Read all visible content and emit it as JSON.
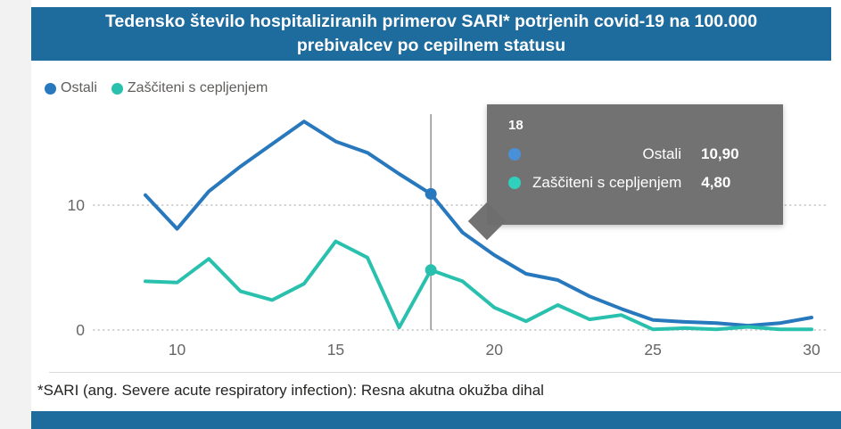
{
  "header": {
    "title": "Tedensko število hospitaliziranih primerov SARI* potrjenih covid-19 na 100.000 prebivalcev po cepilnem statusu"
  },
  "legend": {
    "items": [
      {
        "label": "Ostali",
        "color": "#2878BD"
      },
      {
        "label": "Zaščiteni s cepljenjem",
        "color": "#29C1AE"
      }
    ]
  },
  "tooltip": {
    "week": "18",
    "rows": [
      {
        "label": "Ostali",
        "value": "10,90",
        "color": "#4A90D9"
      },
      {
        "label": "Zaščiteni s cepljenjem",
        "value": "4,80",
        "color": "#2FD0BC"
      }
    ]
  },
  "footnote": "*SARI (ang. Severe acute respiratory infection): Resna akutna okužba dihal",
  "colors": {
    "banner": "#1E6B9D",
    "axis_text": "#666666",
    "grid": "#cfcfcf",
    "ruler": "#777777",
    "tooltip_bg": "#6D6D6D"
  },
  "chart_data": {
    "type": "line",
    "title": "Tedensko število hospitaliziranih primerov SARI* potrjenih covid-19 na 100.000 prebivalcev po cepilnem statusu",
    "x": [
      9,
      10,
      11,
      12,
      13,
      14,
      15,
      16,
      17,
      18,
      19,
      20,
      21,
      22,
      23,
      24,
      25,
      26,
      27,
      28,
      29,
      30
    ],
    "series": [
      {
        "name": "Ostali",
        "color": "#2878BD",
        "values": [
          10.8,
          8.1,
          11.1,
          13.1,
          14.9,
          16.7,
          15.1,
          14.2,
          12.5,
          10.9,
          7.8,
          6.0,
          4.5,
          4.0,
          2.7,
          1.7,
          0.8,
          0.65,
          0.55,
          0.35,
          0.55,
          1.0
        ]
      },
      {
        "name": "Zaščiteni s cepljenjem",
        "color": "#29C1AE",
        "values": [
          3.9,
          3.8,
          5.7,
          3.1,
          2.4,
          3.7,
          7.1,
          5.8,
          0.2,
          4.8,
          3.9,
          1.8,
          0.7,
          2.0,
          0.85,
          1.2,
          0.05,
          0.15,
          0.05,
          0.25,
          0.05,
          0.05
        ]
      }
    ],
    "xticks": [
      10,
      15,
      20,
      25,
      30
    ],
    "yticks": [
      0,
      10
    ],
    "xlabel": "",
    "ylabel": "",
    "xlim": [
      9,
      30
    ],
    "ylim": [
      0,
      17.3
    ],
    "grid": "horizontal-dotted",
    "legend_position": "top-left",
    "highlight_x": 18,
    "highlight_values": {
      "Ostali": 10.9,
      "Zaščiteni s cepljenjem": 4.8
    }
  }
}
